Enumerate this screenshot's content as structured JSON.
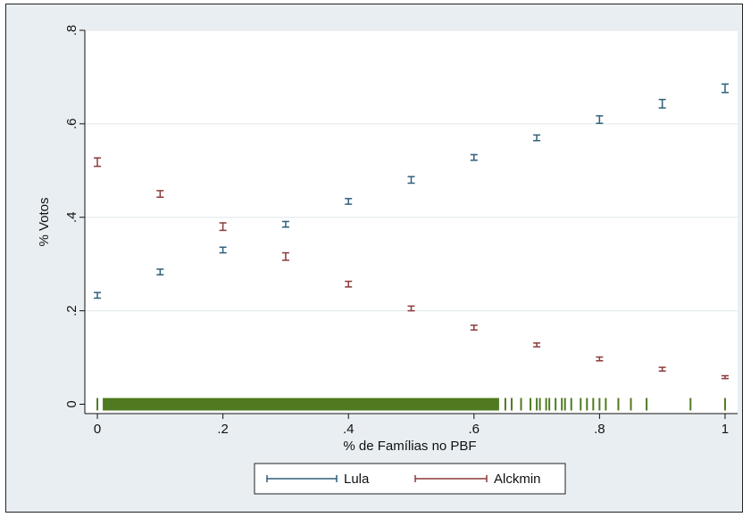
{
  "chart_data": {
    "type": "scatter",
    "xlabel": "% de Famílias no PBF",
    "ylabel": "% Votos",
    "xlim": [
      -0.02,
      1.02
    ],
    "ylim": [
      -0.02,
      0.8
    ],
    "x_ticks": [
      "0",
      ".2",
      ".4",
      ".6",
      ".8",
      "1"
    ],
    "y_ticks": [
      "0",
      ".2",
      ".4",
      ".6",
      ".8"
    ],
    "grid": true,
    "legend": "bottom",
    "colors": {
      "Lula": "#2f5f7a",
      "Alckmin": "#8c3a3a",
      "rug": "#4f7a1f",
      "plot_bg": "#ffffff",
      "outer_bg": "#e9eef2"
    },
    "series": [
      {
        "name": "Lula",
        "x": [
          0,
          0.1,
          0.2,
          0.3,
          0.4,
          0.5,
          0.6,
          0.7,
          0.8,
          0.9,
          1.0
        ],
        "y": [
          0.233,
          0.283,
          0.33,
          0.385,
          0.434,
          0.48,
          0.528,
          0.57,
          0.609,
          0.643,
          0.676
        ],
        "err": [
          0.006,
          0.006,
          0.006,
          0.006,
          0.006,
          0.007,
          0.006,
          0.006,
          0.008,
          0.009,
          0.009
        ]
      },
      {
        "name": "Alckmin",
        "x": [
          0,
          0.1,
          0.2,
          0.3,
          0.4,
          0.5,
          0.6,
          0.7,
          0.8,
          0.9,
          1.0
        ],
        "y": [
          0.518,
          0.45,
          0.38,
          0.316,
          0.257,
          0.205,
          0.164,
          0.127,
          0.097,
          0.075,
          0.058
        ],
        "err": [
          0.009,
          0.007,
          0.008,
          0.008,
          0.006,
          0.005,
          0.005,
          0.004,
          0.004,
          0.004,
          0.003
        ]
      }
    ],
    "rug": [
      0,
      0.01,
      0.63,
      0.65,
      0.66,
      0.675,
      0.69,
      0.7,
      0.705,
      0.715,
      0.72,
      0.73,
      0.74,
      0.745,
      0.755,
      0.77,
      0.78,
      0.79,
      0.8,
      0.81,
      0.83,
      0.85,
      0.875,
      0.945,
      1.0
    ],
    "rug_dense_range": [
      0.01,
      0.64
    ]
  }
}
